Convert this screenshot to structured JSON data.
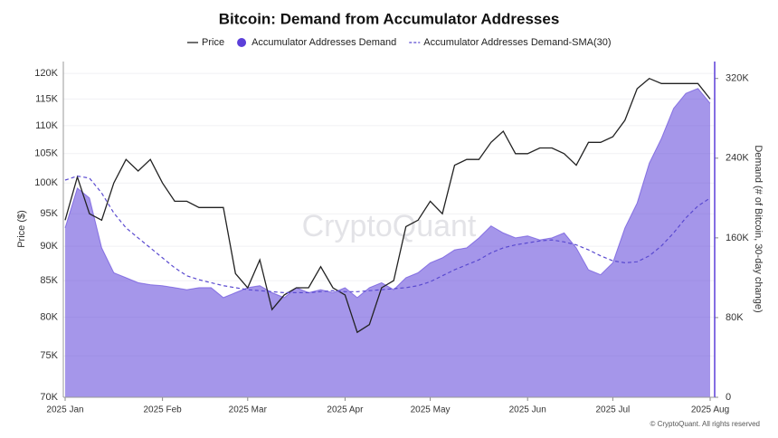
{
  "chart_data": {
    "type": "line",
    "title": "Bitcoin: Demand from Accumulator Addresses",
    "watermark": "CryptoQuant",
    "footer": "© CryptoQuant. All rights reserved",
    "y_label": "Price ($)",
    "y2_label": "Demand (# of Bitcoin, 30-day change)",
    "log_y": true,
    "grid": true,
    "categories": [
      "2025 Jan",
      null,
      null,
      null,
      null,
      null,
      null,
      null,
      "2025 Feb",
      null,
      null,
      null,
      null,
      null,
      null,
      "2025 Mar",
      null,
      null,
      null,
      null,
      null,
      null,
      null,
      "2025 Apr",
      null,
      null,
      null,
      null,
      null,
      null,
      "2025 May",
      null,
      null,
      null,
      null,
      null,
      null,
      null,
      "2025 Jun",
      null,
      null,
      null,
      null,
      null,
      null,
      "2025 Jul",
      null,
      null,
      null,
      null,
      null,
      null,
      null,
      "2025 Aug"
    ],
    "series": [
      {
        "name": "Price",
        "color": "#222222",
        "kind": "line",
        "axis": "y",
        "values": [
          94000,
          101000,
          95000,
          94000,
          100000,
          104000,
          102000,
          104000,
          100000,
          97000,
          97000,
          96000,
          96000,
          96000,
          86000,
          84000,
          88000,
          81000,
          83000,
          84000,
          84000,
          87000,
          84000,
          83000,
          78000,
          79000,
          84000,
          85000,
          93000,
          94000,
          97000,
          95000,
          103000,
          104000,
          104000,
          107000,
          109000,
          105000,
          105000,
          106000,
          106000,
          105000,
          103000,
          107000,
          107000,
          108000,
          111000,
          117000,
          119000,
          118000,
          118000,
          118000,
          118000,
          115000
        ]
      },
      {
        "name": "Accumulator Addresses Demand",
        "color": "#5b3fd9",
        "kind": "area",
        "axis": "y2",
        "values": [
          170000,
          210000,
          200000,
          150000,
          125000,
          120000,
          115000,
          113000,
          112000,
          110000,
          108000,
          110000,
          110000,
          100000,
          105000,
          110000,
          112000,
          105000,
          100000,
          110000,
          105000,
          108000,
          105000,
          110000,
          100000,
          110000,
          115000,
          108000,
          120000,
          125000,
          135000,
          140000,
          148000,
          150000,
          160000,
          172000,
          165000,
          160000,
          162000,
          158000,
          160000,
          165000,
          150000,
          128000,
          123000,
          135000,
          170000,
          195000,
          235000,
          260000,
          290000,
          305000,
          310000,
          295000
        ]
      },
      {
        "name": "Accumulator Addresses Demand-SMA(30)",
        "color": "#5a4ad0",
        "kind": "dashed",
        "axis": "y2",
        "values": [
          218000,
          222000,
          220000,
          205000,
          185000,
          170000,
          160000,
          150000,
          140000,
          130000,
          122000,
          118000,
          115000,
          112000,
          110000,
          108000,
          107000,
          106000,
          105000,
          105000,
          105000,
          106000,
          107000,
          106000,
          106000,
          107000,
          108000,
          109000,
          110000,
          112000,
          116000,
          122000,
          128000,
          133000,
          138000,
          145000,
          150000,
          153000,
          155000,
          157000,
          158000,
          156000,
          153000,
          148000,
          142000,
          137000,
          135000,
          136000,
          142000,
          152000,
          165000,
          180000,
          192000,
          200000
        ]
      }
    ],
    "ylim": [
      70000,
      122400
    ],
    "yticks": [
      {
        "value": 70000,
        "label": "70K"
      },
      {
        "value": 75000,
        "label": "75K"
      },
      {
        "value": 80000,
        "label": "80K"
      },
      {
        "value": 85000,
        "label": "85K"
      },
      {
        "value": 90000,
        "label": "90K"
      },
      {
        "value": 95000,
        "label": "95K"
      },
      {
        "value": 100000,
        "label": "100K"
      },
      {
        "value": 105000,
        "label": "105K"
      },
      {
        "value": 110000,
        "label": "110K"
      },
      {
        "value": 115000,
        "label": "115K"
      },
      {
        "value": 120000,
        "label": "120K"
      }
    ],
    "y2lim": [
      0,
      337000
    ],
    "y2ticks": [
      0,
      {
        "value": 80000,
        "label": "80K"
      },
      {
        "value": 160000,
        "label": "160K"
      },
      {
        "value": 240000,
        "label": "240K"
      },
      {
        "value": 320000,
        "label": "320K"
      }
    ]
  }
}
